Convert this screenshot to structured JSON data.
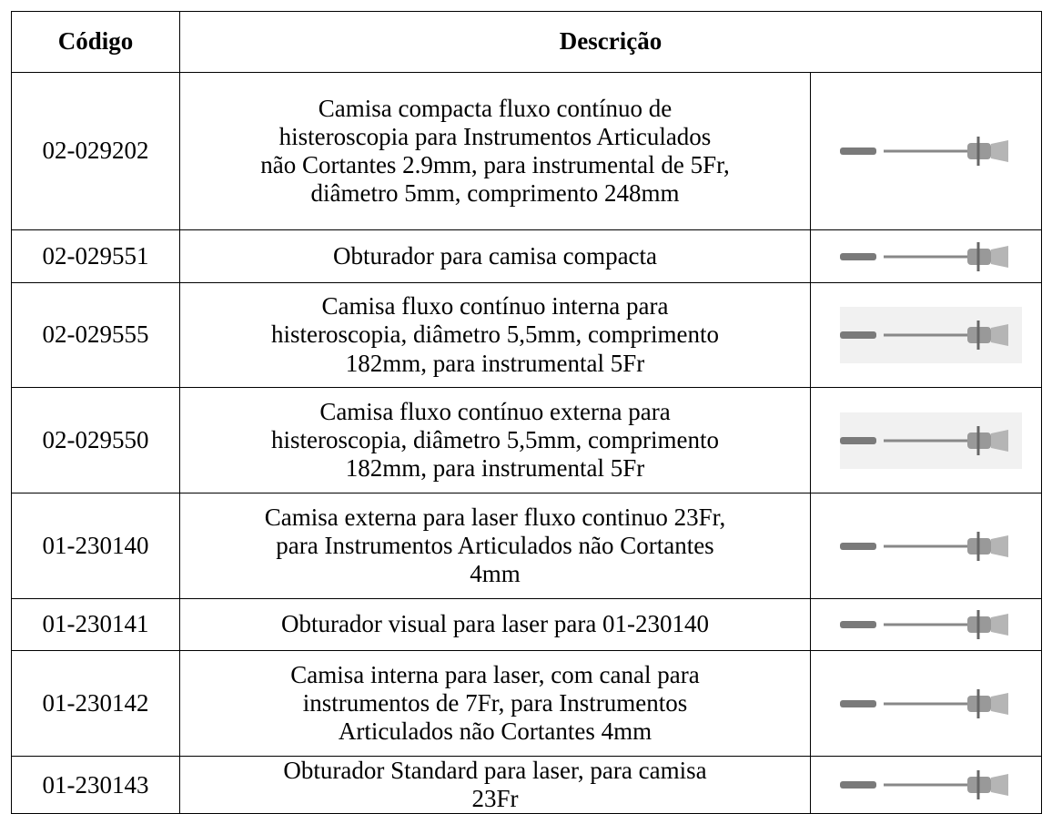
{
  "table": {
    "header": [
      "Código",
      "Descrição"
    ],
    "rows": [
      [
        "02-029202",
        "Camisa compacta fluxo contínuo de histeroscopia para Instrumentos Articulados não Cortantes 2.9mm, para instrumental de 5Fr, diâmetro 5mm, comprimento 248mm"
      ],
      [
        "02-029551",
        "Obturador para camisa compacta"
      ],
      [
        "02-029555",
        "Camisa fluxo contínuo interna para histeroscopia, diâmetro 5,5mm, comprimento 182mm, para instrumental 5Fr"
      ],
      [
        "02-029550",
        "Camisa fluxo contínuo externa para histeroscopia, diâmetro 5,5mm, comprimento 182mm, para instrumental 5Fr"
      ],
      [
        "01-230140",
        "Camisa externa para laser fluxo continuo 23Fr, para Instrumentos Articulados não Cortantes 4mm"
      ],
      [
        "01-230141",
        "Obturador visual para laser para 01-230140"
      ],
      [
        "01-230142",
        "Camisa interna para laser, com canal para instrumentos de 7Fr, para Instrumentos Articulados não Cortantes 4mm"
      ],
      [
        "01-230143",
        "Obturador Standard para laser, para camisa 23Fr"
      ]
    ]
  }
}
